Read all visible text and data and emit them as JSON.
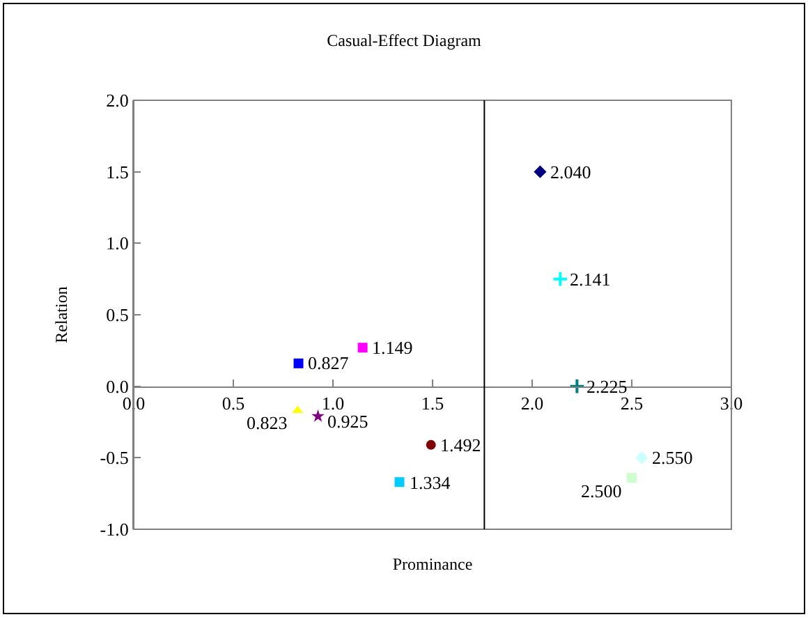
{
  "chart_data": {
    "type": "scatter",
    "title": "Casual-Effect Diagram",
    "xlabel": "Prominance",
    "ylabel": "Relation",
    "xlim": [
      0,
      3
    ],
    "xticks": [
      {
        "value": 0,
        "label": "0.0"
      },
      {
        "value": 0.5,
        "label": "0.5"
      },
      {
        "value": 1,
        "label": "1.0"
      },
      {
        "value": 1.5,
        "label": "1.5"
      },
      {
        "value": 2,
        "label": "2.0"
      },
      {
        "value": 2.5,
        "label": "2.5"
      },
      {
        "value": 3,
        "label": "3.0"
      }
    ],
    "ylim": [
      -1,
      2
    ],
    "yticks": [
      {
        "value": -1,
        "label": "-1.0"
      },
      {
        "value": -0.5,
        "label": "-0.5"
      },
      {
        "value": 0,
        "label": "0.0"
      },
      {
        "value": 0.5,
        "label": "0.5"
      },
      {
        "value": 1,
        "label": "1.0"
      },
      {
        "value": 1.5,
        "label": "1.5"
      },
      {
        "value": 2,
        "label": "2.0"
      }
    ],
    "grid": false,
    "ref_lines": [
      {
        "axis": "x",
        "value": 1.76,
        "color": "#000000"
      }
    ],
    "series": [
      {
        "color": "#000080",
        "marker": "diamond",
        "x": [
          2.04
        ],
        "values": [
          1.5
        ]
      },
      {
        "color": "#00ffff",
        "marker": "cross",
        "x": [
          2.141
        ],
        "values": [
          0.75
        ]
      },
      {
        "color": "#008080",
        "marker": "cross",
        "x": [
          2.225
        ],
        "values": [
          0
        ]
      },
      {
        "color": "#ccffff",
        "marker": "diamond",
        "x": [
          2.55
        ],
        "values": [
          -0.5
        ]
      },
      {
        "color": "#ccffcc",
        "marker": "square",
        "x": [
          2.5
        ],
        "values": [
          -0.64
        ]
      },
      {
        "color": "#ff00ff",
        "marker": "square",
        "x": [
          1.149
        ],
        "values": [
          0.27
        ]
      },
      {
        "color": "#0000ff",
        "marker": "square",
        "x": [
          0.827
        ],
        "values": [
          0.16
        ]
      },
      {
        "color": "#ffff00",
        "marker": "triangle",
        "x": [
          0.823
        ],
        "values": [
          -0.17
        ]
      },
      {
        "color": "#800080",
        "marker": "star",
        "x": [
          0.925
        ],
        "values": [
          -0.21
        ]
      },
      {
        "color": "#800000",
        "marker": "circle",
        "x": [
          1.492
        ],
        "values": [
          -0.41
        ]
      },
      {
        "color": "#00ccff",
        "marker": "square",
        "x": [
          1.334
        ],
        "values": [
          -0.67
        ]
      }
    ],
    "annotations": [
      {
        "text": "2.040",
        "x": 2.04,
        "y": 1.5
      },
      {
        "text": "2.141",
        "x": 2.141,
        "y": 0.75
      },
      {
        "text": "2.225",
        "x": 2.225,
        "y": 0
      },
      {
        "text": "2.550",
        "x": 2.55,
        "y": -0.5
      },
      {
        "text": "2.500",
        "x": 2.5,
        "y": -0.64
      },
      {
        "text": "1.149",
        "x": 1.149,
        "y": 0.27
      },
      {
        "text": "0.827",
        "x": 0.827,
        "y": 0.16
      },
      {
        "text": "0.823",
        "x": 0.823,
        "y": -0.17
      },
      {
        "text": "0.925",
        "x": 0.925,
        "y": -0.21
      },
      {
        "text": "1.492",
        "x": 1.492,
        "y": -0.41
      },
      {
        "text": "1.334",
        "x": 1.334,
        "y": -0.67
      }
    ]
  }
}
